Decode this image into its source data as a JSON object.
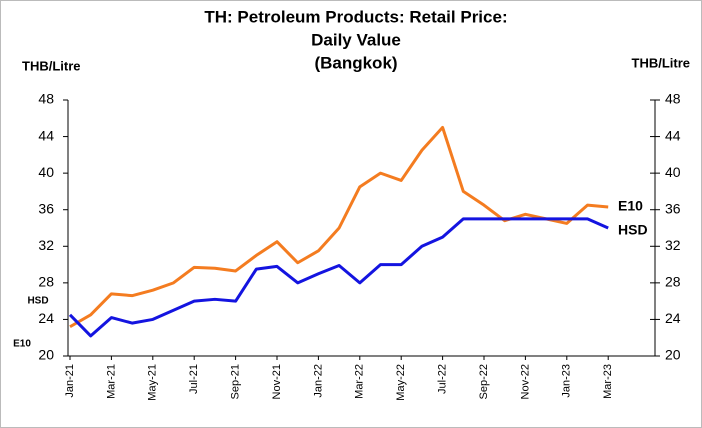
{
  "chart_data": {
    "type": "line",
    "title": [
      "TH: Petroleum Products: Retail Price:",
      "Daily Value",
      "(Bangkok)"
    ],
    "y_label": "THB/Litre",
    "y2_label": "THB/Litre",
    "categories": [
      "Jan-21",
      null,
      "Mar-21",
      null,
      "May-21",
      null,
      "Jul-21",
      null,
      "Sep-21",
      null,
      "Nov-21",
      null,
      "Jan-22",
      null,
      "Mar-22",
      null,
      "May-22",
      null,
      "Jul-22",
      null,
      "Sep-22",
      null,
      "Nov-22",
      null,
      "Jan-23",
      null,
      "Mar-23"
    ],
    "series": [
      {
        "name": "E10",
        "color": "#f47c20",
        "values": [
          23.2,
          24.5,
          26.8,
          26.6,
          27.2,
          28.0,
          29.7,
          29.6,
          29.3,
          31.0,
          32.5,
          30.2,
          31.5,
          34.0,
          38.5,
          40.0,
          39.2,
          42.5,
          45.0,
          38.0,
          36.5,
          34.8,
          35.5,
          35.0,
          34.5,
          36.5,
          36.3
        ]
      },
      {
        "name": "HSD",
        "color": "#1414e0",
        "axis": "y2",
        "values": [
          24.5,
          22.2,
          24.2,
          23.6,
          24.0,
          25.0,
          26.0,
          26.2,
          26.0,
          29.5,
          29.8,
          28.0,
          29.0,
          29.9,
          28.0,
          30.0,
          30.0,
          32.0,
          33.0,
          35.0,
          35.0,
          35.0,
          35.0,
          35.0,
          35.0,
          35.0,
          34.0
        ]
      }
    ],
    "ylim": [
      20,
      48
    ],
    "yticks": [
      20,
      24,
      28,
      32,
      36,
      40,
      44,
      48
    ],
    "y2lim": [
      20,
      48
    ],
    "y2ticks": [
      20,
      24,
      28,
      32,
      36,
      40,
      44,
      48
    ],
    "grid": false
  }
}
